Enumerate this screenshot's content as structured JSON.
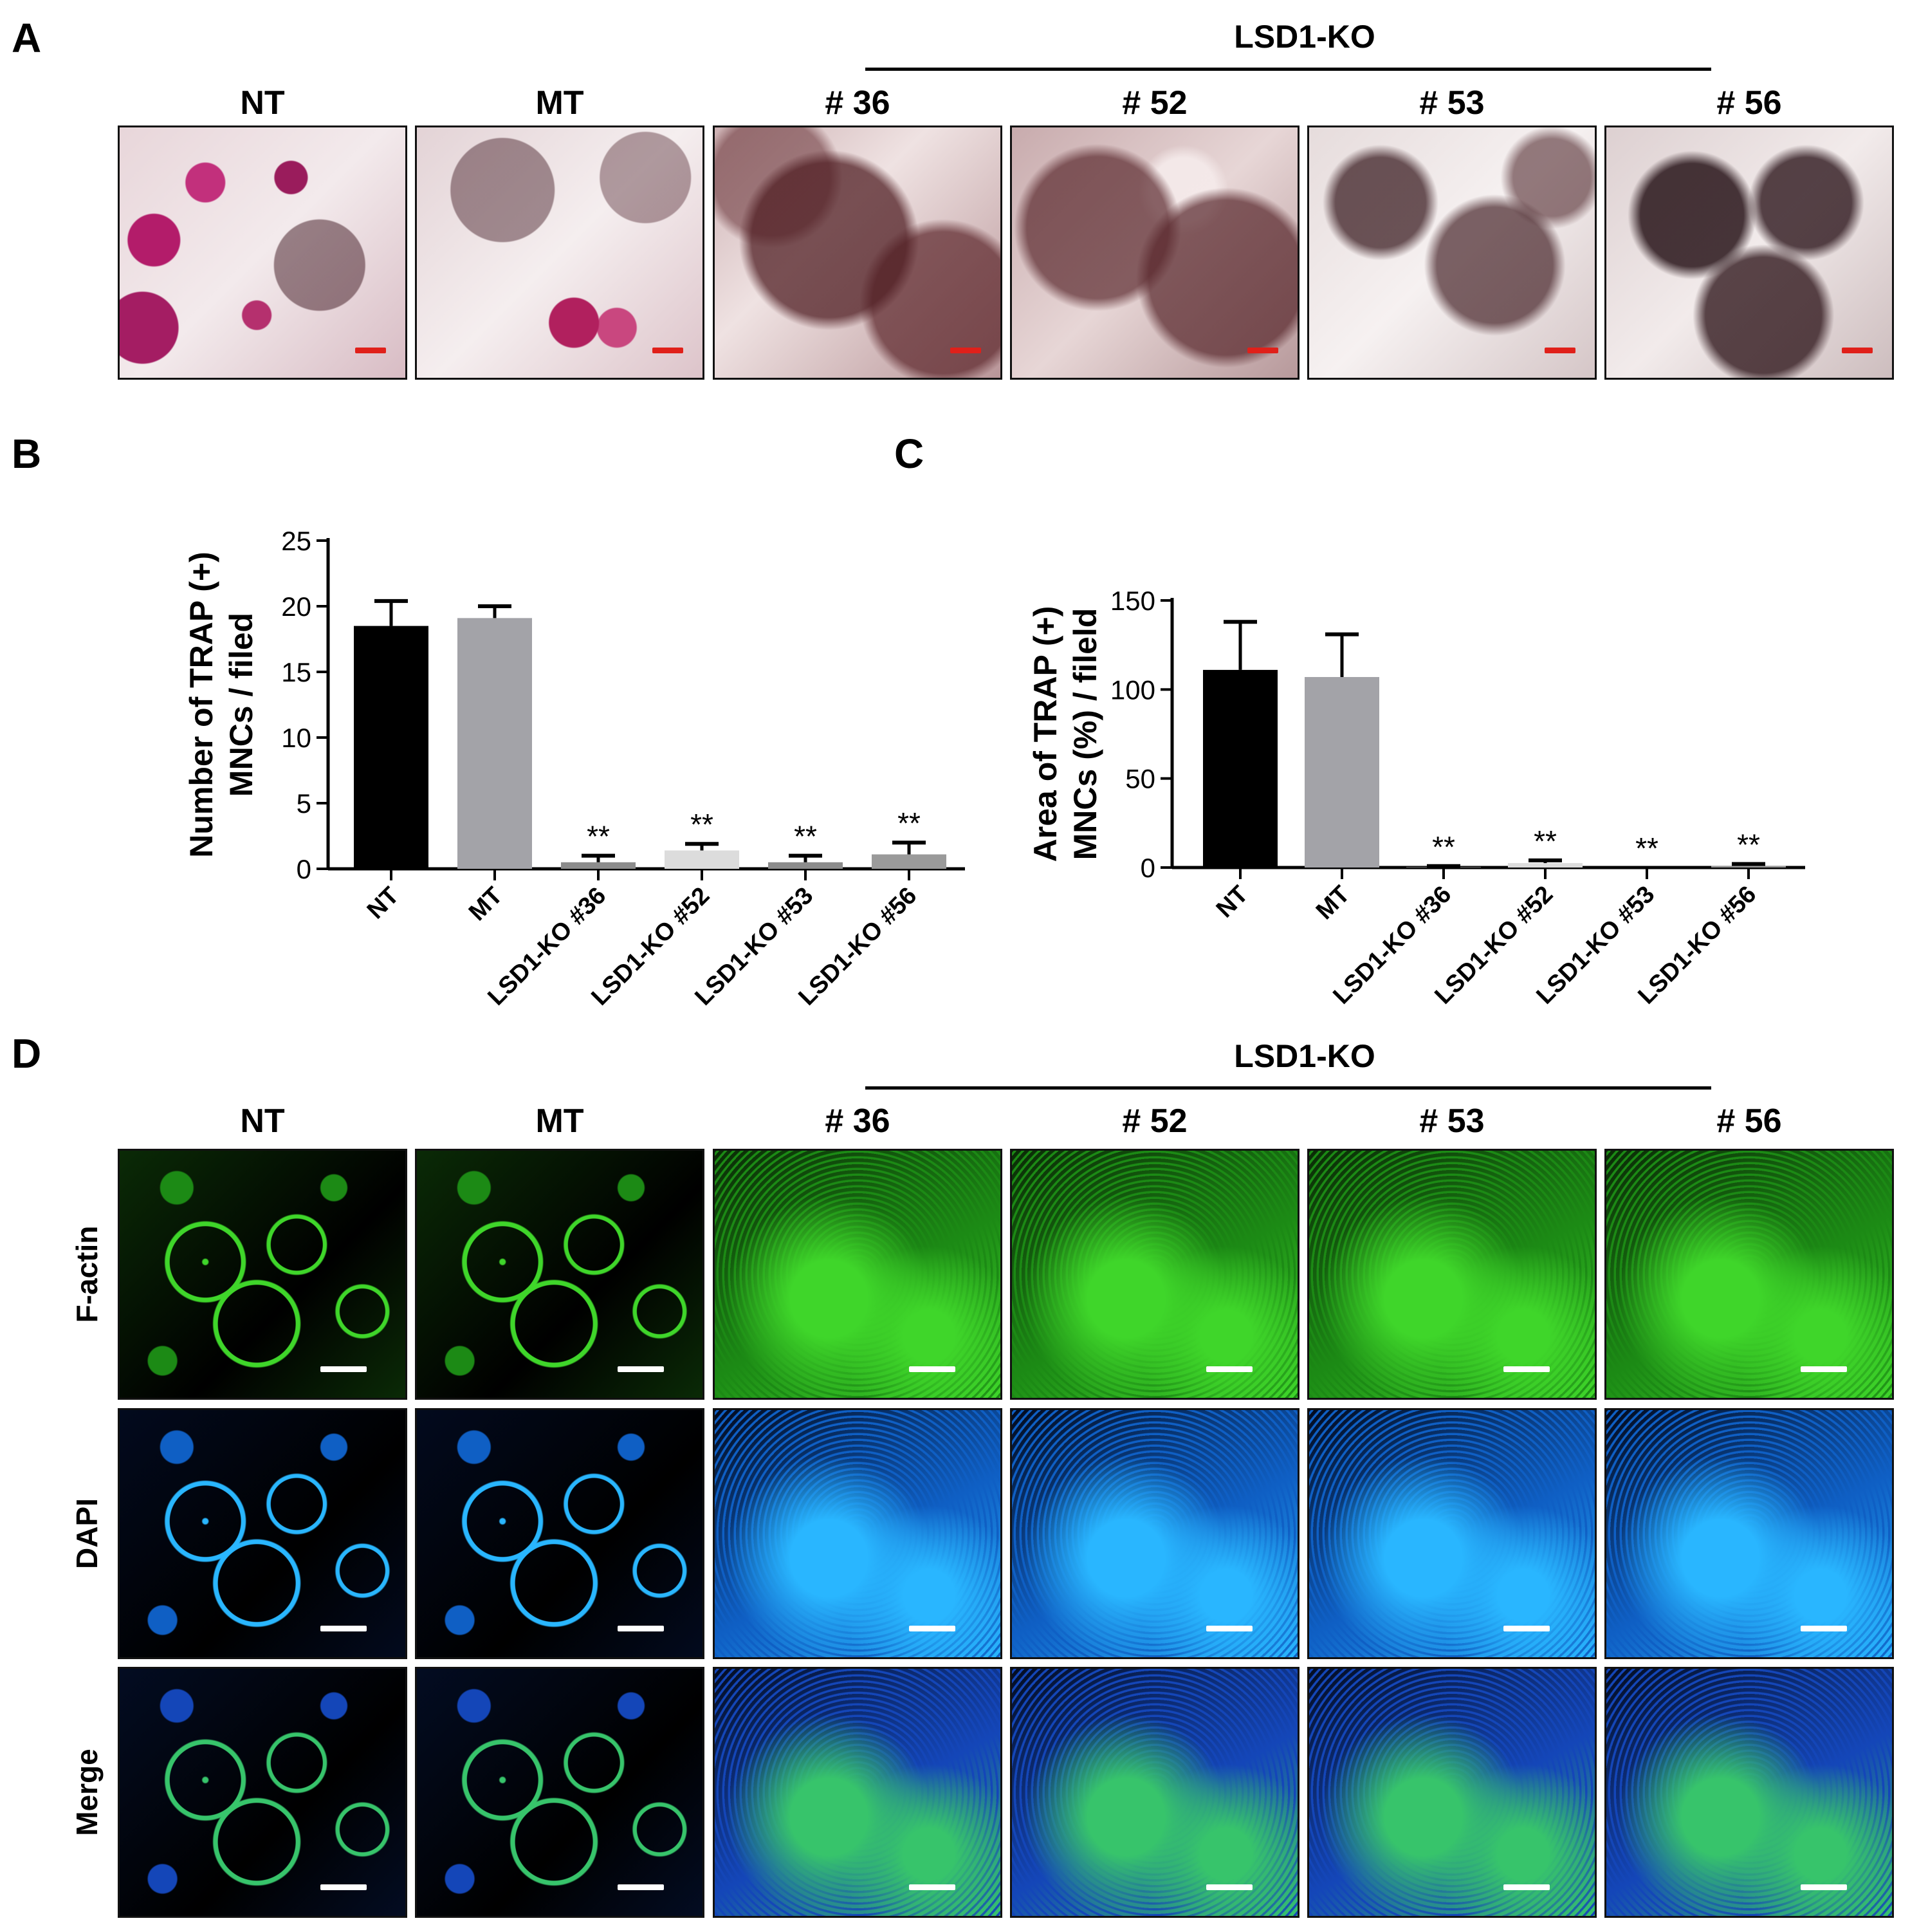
{
  "panel_a": {
    "letter": "A",
    "group_label": "LSD1-KO",
    "columns": [
      "NT",
      "MT",
      "# 36",
      "# 52",
      "# 53",
      "# 56"
    ]
  },
  "panel_d": {
    "letter": "D",
    "group_label": "LSD1-KO",
    "columns": [
      "NT",
      "MT",
      "# 36",
      "# 52",
      "# 53",
      "# 56"
    ],
    "rows": [
      "F-actin",
      "DAPI",
      "Merge"
    ]
  },
  "chart_data": [
    {
      "panel": "B",
      "type": "bar",
      "categories": [
        "NT",
        "MT",
        "LSD1-KO #36",
        "LSD1-KO #52",
        "LSD1-KO #53",
        "LSD1-KO #56"
      ],
      "values": [
        18.5,
        19.1,
        0.5,
        1.4,
        0.5,
        1.1
      ],
      "errors": [
        1.9,
        0.9,
        0.5,
        0.5,
        0.5,
        0.9
      ],
      "significance": [
        "",
        "",
        "**",
        "**",
        "**",
        "**"
      ],
      "bar_colors": [
        "#000000",
        "#a3a3a8",
        "#8c8c8c",
        "#dcdcdc",
        "#8c8c8c",
        "#9a9a9a"
      ],
      "ylabel_line1": "Number of TRAP (+)",
      "ylabel_line2": "MNCs / filed",
      "ylim": [
        0,
        25
      ],
      "yticks": [
        "0",
        "5",
        "10",
        "15",
        "20",
        "25"
      ]
    },
    {
      "panel": "C",
      "type": "bar",
      "categories": [
        "NT",
        "MT",
        "LSD1-KO #36",
        "LSD1-KO #52",
        "LSD1-KO #53",
        "LSD1-KO #56"
      ],
      "values": [
        111,
        107,
        0.3,
        2.5,
        0,
        1.0
      ],
      "errors": [
        27,
        24,
        0.5,
        1.5,
        0,
        1.0
      ],
      "significance": [
        "",
        "",
        "**",
        "**",
        "**",
        "**"
      ],
      "bar_colors": [
        "#000000",
        "#a3a3a8",
        "#8c8c8c",
        "#dcdcdc",
        "#8c8c8c",
        "#9a9a9a"
      ],
      "ylabel_line1": "Area of TRAP (+)",
      "ylabel_line2": "MNCs (%) / fileld",
      "ylim": [
        0,
        150
      ],
      "yticks": [
        "0",
        "50",
        "100",
        "150"
      ]
    }
  ]
}
